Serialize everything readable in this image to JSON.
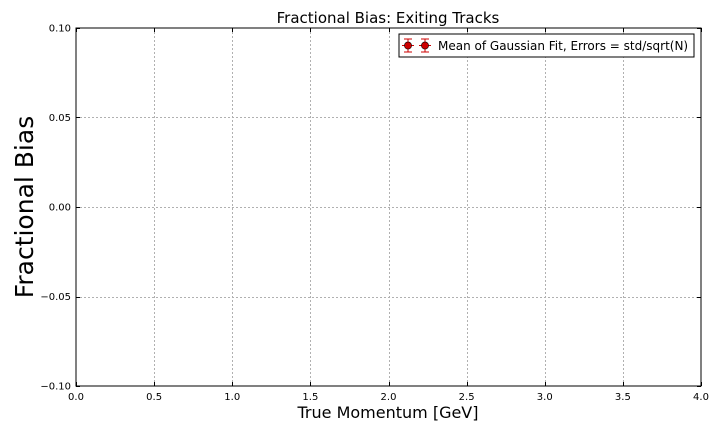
{
  "chart_data": {
    "type": "scatter",
    "title": "Fractional Bias: Exiting Tracks",
    "xlabel": "True Momentum [GeV]",
    "ylabel": "Fractional Bias",
    "xlim": [
      0.0,
      4.0
    ],
    "ylim": [
      -0.1,
      0.1
    ],
    "xticks": [
      0.0,
      0.5,
      1.0,
      1.5,
      2.0,
      2.5,
      3.0,
      3.5,
      4.0
    ],
    "xtick_labels": [
      "0.0",
      "0.5",
      "1.0",
      "1.5",
      "2.0",
      "2.5",
      "3.0",
      "3.5",
      "4.0"
    ],
    "yticks": [
      -0.1,
      -0.05,
      0.0,
      0.05,
      0.1
    ],
    "ytick_labels": [
      "−0.10",
      "−0.05",
      "0.00",
      "0.05",
      "0.10"
    ],
    "grid": true,
    "legend_position": "top-right",
    "series": [
      {
        "name": "Mean of Gaussian Fit, Errors = std/sqrt(N)",
        "color": "#cc0000",
        "marker": "circle",
        "errorbars": true,
        "x": [],
        "y": []
      }
    ]
  }
}
